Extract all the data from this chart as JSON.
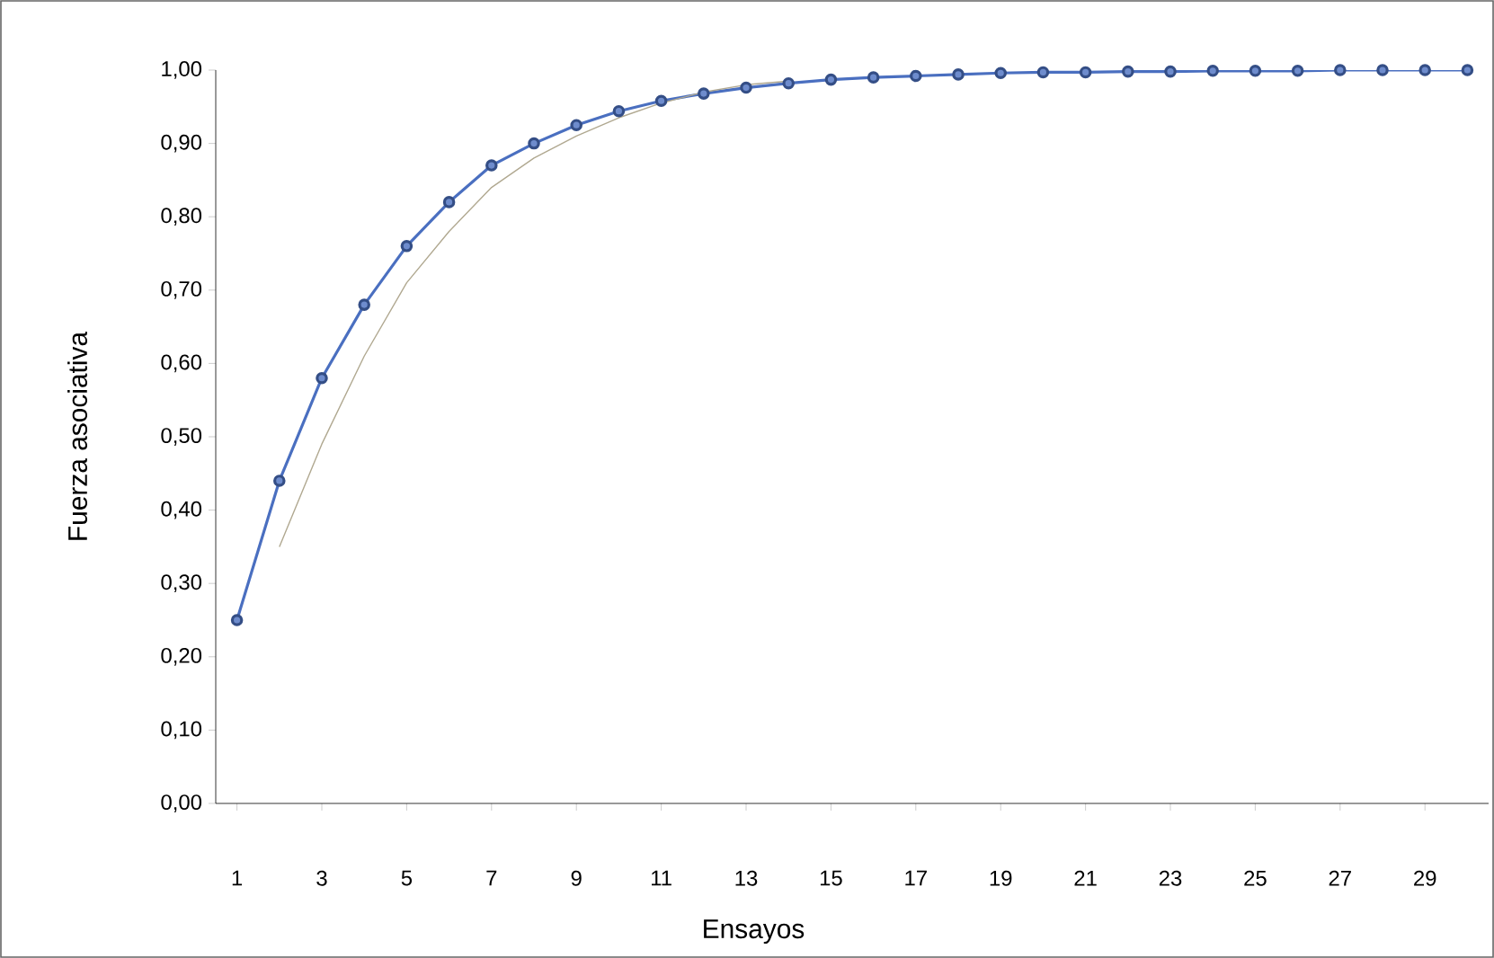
{
  "chart_data": {
    "type": "line",
    "xlabel": "Ensayos",
    "ylabel": "Fuerza asociativa",
    "xlim": [
      0.5,
      30.5
    ],
    "xticks": [
      1,
      3,
      5,
      7,
      9,
      11,
      13,
      15,
      17,
      19,
      21,
      23,
      25,
      27,
      29
    ],
    "ylim": [
      0,
      1
    ],
    "yticks": [
      {
        "value": 0,
        "label": "0,00"
      },
      {
        "value": 0.1,
        "label": "0,10"
      },
      {
        "value": 0.2,
        "label": "0,20"
      },
      {
        "value": 0.3,
        "label": "0,30"
      },
      {
        "value": 0.4,
        "label": "0,40"
      },
      {
        "value": 0.5,
        "label": "0,50"
      },
      {
        "value": 0.6,
        "label": "0,60"
      },
      {
        "value": 0.7,
        "label": "0,70"
      },
      {
        "value": 0.8,
        "label": "0,80"
      },
      {
        "value": 0.9,
        "label": "0,90"
      },
      {
        "value": 1,
        "label": "1,00"
      }
    ],
    "grid": false,
    "marker": "circle",
    "line_style": "solid",
    "series": [
      {
        "color": "#4a6fc0",
        "x": [
          1,
          2,
          3,
          4,
          5,
          6,
          7,
          8,
          9,
          10,
          11,
          12,
          13,
          14,
          15,
          16,
          17,
          18,
          19,
          20,
          21,
          22,
          23,
          24,
          25,
          26,
          27,
          28,
          29,
          30
        ],
        "values": [
          0.25,
          0.44,
          0.58,
          0.68,
          0.76,
          0.82,
          0.87,
          0.9,
          0.925,
          0.944,
          0.958,
          0.968,
          0.976,
          0.982,
          0.987,
          0.99,
          0.992,
          0.994,
          0.996,
          0.997,
          0.997,
          0.998,
          0.998,
          0.999,
          0.999,
          0.999,
          1.0,
          1.0,
          1.0,
          1.0
        ]
      },
      {
        "color": "#b0a890",
        "marker": "none",
        "x": [
          2,
          3,
          4,
          5,
          6,
          7,
          8,
          9,
          10,
          11,
          12,
          13,
          14
        ],
        "values": [
          0.35,
          0.49,
          0.61,
          0.71,
          0.78,
          0.84,
          0.88,
          0.91,
          0.935,
          0.955,
          0.97,
          0.98,
          0.985
        ]
      }
    ]
  }
}
